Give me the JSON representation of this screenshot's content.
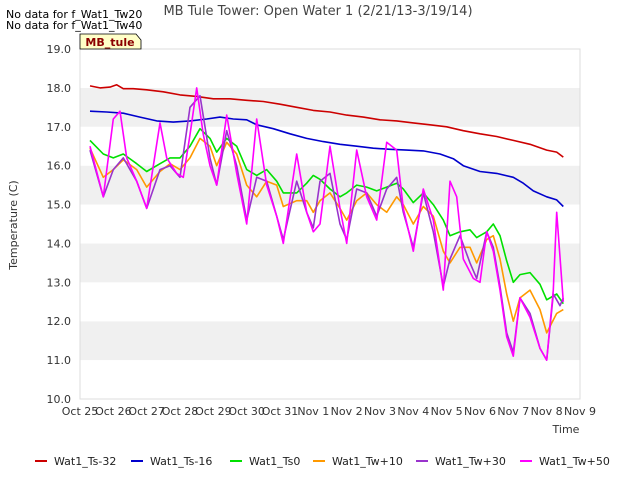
{
  "messages": [
    "No data for f_Wat1_Tw20",
    "No data for f_Wat1_Tw40"
  ],
  "station_label": "MB_tule",
  "chart_data": {
    "type": "line",
    "title": "MB Tule Tower: Open Water 1 (2/21/13-3/19/14)",
    "xlabel": "Time",
    "ylabel": "Temperature (C)",
    "xlim": [
      0,
      15
    ],
    "ylim": [
      10.0,
      19.0
    ],
    "x_ticks": [
      {
        "value": 0,
        "label": "Oct 25"
      },
      {
        "value": 1,
        "label": "Oct 26"
      },
      {
        "value": 2,
        "label": "Oct 27"
      },
      {
        "value": 3,
        "label": "Oct 28"
      },
      {
        "value": 4,
        "label": "Oct 29"
      },
      {
        "value": 5,
        "label": "Oct 30"
      },
      {
        "value": 6,
        "label": "Oct 31"
      },
      {
        "value": 7,
        "label": "Nov 1"
      },
      {
        "value": 8,
        "label": "Nov 2"
      },
      {
        "value": 9,
        "label": "Nov 3"
      },
      {
        "value": 10,
        "label": "Nov 4"
      },
      {
        "value": 11,
        "label": "Nov 5"
      },
      {
        "value": 12,
        "label": "Nov 6"
      },
      {
        "value": 13,
        "label": "Nov 7"
      },
      {
        "value": 14,
        "label": "Nov 8"
      },
      {
        "value": 15,
        "label": "Nov 9"
      }
    ],
    "y_ticks": [
      {
        "value": 10,
        "label": "10.0"
      },
      {
        "value": 11,
        "label": "11.0"
      },
      {
        "value": 12,
        "label": "12.0"
      },
      {
        "value": 13,
        "label": "13.0"
      },
      {
        "value": 14,
        "label": "14.0"
      },
      {
        "value": 15,
        "label": "15.0"
      },
      {
        "value": 16,
        "label": "16.0"
      },
      {
        "value": 17,
        "label": "17.0"
      },
      {
        "value": 18,
        "label": "18.0"
      },
      {
        "value": 19,
        "label": "19.0"
      }
    ],
    "grid": "horizontal bands",
    "band_colors": [
      "#ffffff",
      "#f0f0f0"
    ],
    "legend_position": "bottom",
    "series": [
      {
        "name": "Wat1_Ts-32",
        "color": "#cc0000",
        "points": [
          [
            0.3,
            18.05
          ],
          [
            0.6,
            18.0
          ],
          [
            0.9,
            18.02
          ],
          [
            1.1,
            18.08
          ],
          [
            1.3,
            17.98
          ],
          [
            1.6,
            17.98
          ],
          [
            2.0,
            17.95
          ],
          [
            2.5,
            17.9
          ],
          [
            3.0,
            17.82
          ],
          [
            3.5,
            17.78
          ],
          [
            4.0,
            17.72
          ],
          [
            4.5,
            17.72
          ],
          [
            5.0,
            17.68
          ],
          [
            5.5,
            17.65
          ],
          [
            6.0,
            17.58
          ],
          [
            6.5,
            17.5
          ],
          [
            7.0,
            17.42
          ],
          [
            7.5,
            17.38
          ],
          [
            8.0,
            17.3
          ],
          [
            8.5,
            17.25
          ],
          [
            9.0,
            17.18
          ],
          [
            9.5,
            17.15
          ],
          [
            10.0,
            17.1
          ],
          [
            10.5,
            17.05
          ],
          [
            11.0,
            17.0
          ],
          [
            11.5,
            16.9
          ],
          [
            12.0,
            16.82
          ],
          [
            12.5,
            16.75
          ],
          [
            13.0,
            16.65
          ],
          [
            13.5,
            16.55
          ],
          [
            14.0,
            16.4
          ],
          [
            14.3,
            16.35
          ],
          [
            14.5,
            16.22
          ]
        ]
      },
      {
        "name": "Wat1_Ts-16",
        "color": "#0000cc",
        "points": [
          [
            0.3,
            17.4
          ],
          [
            0.8,
            17.38
          ],
          [
            1.3,
            17.35
          ],
          [
            1.8,
            17.25
          ],
          [
            2.3,
            17.15
          ],
          [
            2.8,
            17.12
          ],
          [
            3.3,
            17.15
          ],
          [
            3.8,
            17.2
          ],
          [
            4.2,
            17.25
          ],
          [
            4.6,
            17.2
          ],
          [
            5.0,
            17.18
          ],
          [
            5.3,
            17.05
          ],
          [
            5.8,
            16.95
          ],
          [
            6.3,
            16.82
          ],
          [
            6.8,
            16.7
          ],
          [
            7.3,
            16.62
          ],
          [
            7.8,
            16.55
          ],
          [
            8.3,
            16.5
          ],
          [
            8.8,
            16.45
          ],
          [
            9.3,
            16.42
          ],
          [
            9.8,
            16.4
          ],
          [
            10.3,
            16.38
          ],
          [
            10.8,
            16.3
          ],
          [
            11.2,
            16.18
          ],
          [
            11.5,
            16.0
          ],
          [
            12.0,
            15.85
          ],
          [
            12.5,
            15.8
          ],
          [
            13.0,
            15.7
          ],
          [
            13.3,
            15.55
          ],
          [
            13.6,
            15.35
          ],
          [
            14.0,
            15.2
          ],
          [
            14.3,
            15.12
          ],
          [
            14.5,
            14.95
          ]
        ]
      },
      {
        "name": "Wat1_Ts0",
        "color": "#00e000",
        "points": [
          [
            0.3,
            16.65
          ],
          [
            0.7,
            16.3
          ],
          [
            1.0,
            16.2
          ],
          [
            1.3,
            16.3
          ],
          [
            1.7,
            16.05
          ],
          [
            2.0,
            15.85
          ],
          [
            2.4,
            16.05
          ],
          [
            2.7,
            16.2
          ],
          [
            3.0,
            16.2
          ],
          [
            3.3,
            16.5
          ],
          [
            3.6,
            16.95
          ],
          [
            3.9,
            16.7
          ],
          [
            4.1,
            16.35
          ],
          [
            4.4,
            16.7
          ],
          [
            4.7,
            16.5
          ],
          [
            5.0,
            15.9
          ],
          [
            5.3,
            15.75
          ],
          [
            5.6,
            15.9
          ],
          [
            5.9,
            15.6
          ],
          [
            6.1,
            15.3
          ],
          [
            6.5,
            15.3
          ],
          [
            6.8,
            15.55
          ],
          [
            7.0,
            15.75
          ],
          [
            7.2,
            15.65
          ],
          [
            7.5,
            15.4
          ],
          [
            7.8,
            15.2
          ],
          [
            8.0,
            15.3
          ],
          [
            8.3,
            15.5
          ],
          [
            8.6,
            15.45
          ],
          [
            8.9,
            15.35
          ],
          [
            9.2,
            15.45
          ],
          [
            9.5,
            15.55
          ],
          [
            9.7,
            15.4
          ],
          [
            10.0,
            15.05
          ],
          [
            10.3,
            15.3
          ],
          [
            10.6,
            15.0
          ],
          [
            10.9,
            14.6
          ],
          [
            11.1,
            14.2
          ],
          [
            11.4,
            14.3
          ],
          [
            11.7,
            14.35
          ],
          [
            11.9,
            14.15
          ],
          [
            12.2,
            14.3
          ],
          [
            12.4,
            14.5
          ],
          [
            12.6,
            14.2
          ],
          [
            12.8,
            13.55
          ],
          [
            13.0,
            13.0
          ],
          [
            13.2,
            13.2
          ],
          [
            13.5,
            13.25
          ],
          [
            13.8,
            12.95
          ],
          [
            14.0,
            12.55
          ],
          [
            14.3,
            12.7
          ],
          [
            14.5,
            12.45
          ]
        ]
      },
      {
        "name": "Wat1_Tw+10",
        "color": "#ff9900",
        "points": [
          [
            0.3,
            16.45
          ],
          [
            0.7,
            15.7
          ],
          [
            1.0,
            15.9
          ],
          [
            1.3,
            16.15
          ],
          [
            1.7,
            15.9
          ],
          [
            2.0,
            15.45
          ],
          [
            2.4,
            15.85
          ],
          [
            2.7,
            16.05
          ],
          [
            3.0,
            15.9
          ],
          [
            3.3,
            16.2
          ],
          [
            3.6,
            16.7
          ],
          [
            3.9,
            16.5
          ],
          [
            4.1,
            16.0
          ],
          [
            4.4,
            16.6
          ],
          [
            4.7,
            16.3
          ],
          [
            5.0,
            15.5
          ],
          [
            5.3,
            15.2
          ],
          [
            5.6,
            15.6
          ],
          [
            5.9,
            15.5
          ],
          [
            6.1,
            14.95
          ],
          [
            6.5,
            15.1
          ],
          [
            6.8,
            15.1
          ],
          [
            7.0,
            14.8
          ],
          [
            7.2,
            15.1
          ],
          [
            7.5,
            15.3
          ],
          [
            7.8,
            14.9
          ],
          [
            8.0,
            14.6
          ],
          [
            8.3,
            15.1
          ],
          [
            8.6,
            15.3
          ],
          [
            8.9,
            15.0
          ],
          [
            9.2,
            14.8
          ],
          [
            9.5,
            15.2
          ],
          [
            9.7,
            15.0
          ],
          [
            10.0,
            14.5
          ],
          [
            10.3,
            14.95
          ],
          [
            10.6,
            14.7
          ],
          [
            10.9,
            13.8
          ],
          [
            11.1,
            13.5
          ],
          [
            11.4,
            13.9
          ],
          [
            11.7,
            13.9
          ],
          [
            11.9,
            13.5
          ],
          [
            12.2,
            14.1
          ],
          [
            12.4,
            14.2
          ],
          [
            12.6,
            13.6
          ],
          [
            12.8,
            12.7
          ],
          [
            13.0,
            12.0
          ],
          [
            13.2,
            12.6
          ],
          [
            13.5,
            12.8
          ],
          [
            13.8,
            12.3
          ],
          [
            14.0,
            11.7
          ],
          [
            14.3,
            12.2
          ],
          [
            14.5,
            12.3
          ]
        ]
      },
      {
        "name": "Wat1_Tw+30",
        "color": "#9933cc",
        "points": [
          [
            0.3,
            16.4
          ],
          [
            0.7,
            15.2
          ],
          [
            1.0,
            15.9
          ],
          [
            1.3,
            16.2
          ],
          [
            1.7,
            15.6
          ],
          [
            2.0,
            14.9
          ],
          [
            2.4,
            15.9
          ],
          [
            2.7,
            16.0
          ],
          [
            3.0,
            15.7
          ],
          [
            3.3,
            17.5
          ],
          [
            3.6,
            17.8
          ],
          [
            3.9,
            16.2
          ],
          [
            4.1,
            15.5
          ],
          [
            4.4,
            16.9
          ],
          [
            4.7,
            16.0
          ],
          [
            5.0,
            14.6
          ],
          [
            5.3,
            15.7
          ],
          [
            5.6,
            15.6
          ],
          [
            5.9,
            14.7
          ],
          [
            6.1,
            14.1
          ],
          [
            6.5,
            15.6
          ],
          [
            6.8,
            14.8
          ],
          [
            7.0,
            14.4
          ],
          [
            7.2,
            15.6
          ],
          [
            7.5,
            15.8
          ],
          [
            7.8,
            14.5
          ],
          [
            8.0,
            14.1
          ],
          [
            8.3,
            15.4
          ],
          [
            8.6,
            15.3
          ],
          [
            8.9,
            14.7
          ],
          [
            9.2,
            15.4
          ],
          [
            9.5,
            15.7
          ],
          [
            9.7,
            14.8
          ],
          [
            10.0,
            13.9
          ],
          [
            10.3,
            15.3
          ],
          [
            10.6,
            14.3
          ],
          [
            10.9,
            12.9
          ],
          [
            11.1,
            13.6
          ],
          [
            11.4,
            14.2
          ],
          [
            11.7,
            13.5
          ],
          [
            11.9,
            13.1
          ],
          [
            12.2,
            14.3
          ],
          [
            12.4,
            13.9
          ],
          [
            12.6,
            12.9
          ],
          [
            12.8,
            11.7
          ],
          [
            13.0,
            11.2
          ],
          [
            13.2,
            12.6
          ],
          [
            13.5,
            12.2
          ],
          [
            13.8,
            11.3
          ],
          [
            14.0,
            11.0
          ],
          [
            14.2,
            12.7
          ],
          [
            14.4,
            12.4
          ],
          [
            14.5,
            12.6
          ]
        ]
      },
      {
        "name": "Wat1_Tw+50",
        "color": "#ff00ff",
        "points": [
          [
            0.3,
            16.5
          ],
          [
            0.7,
            15.2
          ],
          [
            1.0,
            17.2
          ],
          [
            1.2,
            17.4
          ],
          [
            1.4,
            16.2
          ],
          [
            1.7,
            15.6
          ],
          [
            2.0,
            14.9
          ],
          [
            2.4,
            17.1
          ],
          [
            2.6,
            16.2
          ],
          [
            2.9,
            15.8
          ],
          [
            3.1,
            15.7
          ],
          [
            3.3,
            16.8
          ],
          [
            3.5,
            18.0
          ],
          [
            3.7,
            16.8
          ],
          [
            3.9,
            16.0
          ],
          [
            4.1,
            15.5
          ],
          [
            4.4,
            17.3
          ],
          [
            4.7,
            15.8
          ],
          [
            5.0,
            14.5
          ],
          [
            5.3,
            17.2
          ],
          [
            5.6,
            15.5
          ],
          [
            5.9,
            14.7
          ],
          [
            6.1,
            14.0
          ],
          [
            6.5,
            16.3
          ],
          [
            6.8,
            14.8
          ],
          [
            7.0,
            14.3
          ],
          [
            7.2,
            14.5
          ],
          [
            7.5,
            16.5
          ],
          [
            7.8,
            14.9
          ],
          [
            8.0,
            14.0
          ],
          [
            8.3,
            16.4
          ],
          [
            8.6,
            15.2
          ],
          [
            8.9,
            14.6
          ],
          [
            9.2,
            16.6
          ],
          [
            9.5,
            16.4
          ],
          [
            9.7,
            14.9
          ],
          [
            10.0,
            13.8
          ],
          [
            10.3,
            15.4
          ],
          [
            10.6,
            14.6
          ],
          [
            10.9,
            12.8
          ],
          [
            11.1,
            15.6
          ],
          [
            11.3,
            15.2
          ],
          [
            11.5,
            13.6
          ],
          [
            11.8,
            13.1
          ],
          [
            12.0,
            13.0
          ],
          [
            12.2,
            14.3
          ],
          [
            12.4,
            13.8
          ],
          [
            12.6,
            12.8
          ],
          [
            12.8,
            11.6
          ],
          [
            13.0,
            11.1
          ],
          [
            13.2,
            12.6
          ],
          [
            13.5,
            12.1
          ],
          [
            13.8,
            11.3
          ],
          [
            14.0,
            11.0
          ],
          [
            14.2,
            12.8
          ],
          [
            14.3,
            14.8
          ],
          [
            14.5,
            12.5
          ]
        ]
      }
    ]
  }
}
